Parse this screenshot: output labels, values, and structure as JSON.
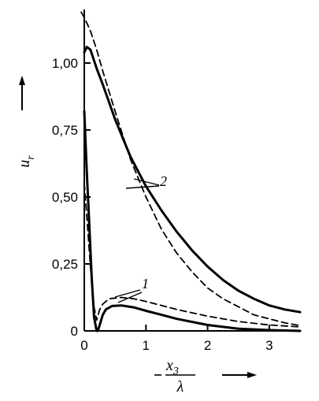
{
  "chart_data": {
    "type": "line",
    "xlim": [
      0,
      3.5
    ],
    "ylim": [
      0,
      1.2
    ],
    "grid": false,
    "legend": "none",
    "x_ticks": [
      {
        "value": 0,
        "label": "0"
      },
      {
        "value": 1,
        "label": "1"
      },
      {
        "value": 2,
        "label": "2"
      },
      {
        "value": 3,
        "label": "3"
      }
    ],
    "y_ticks": [
      {
        "value": 0,
        "label": "0"
      },
      {
        "value": 0.25,
        "label": "0,25"
      },
      {
        "value": 0.5,
        "label": "0,50"
      },
      {
        "value": 0.75,
        "label": "0,75"
      },
      {
        "value": 1.0,
        "label": "1,00"
      }
    ],
    "ylabel": {
      "main": "u",
      "sub": "r"
    },
    "xlabel": {
      "main": "x",
      "sub": "3",
      "denominator": "λ"
    },
    "annotations": [
      {
        "text": "1",
        "series": [
          "curve-1-solid",
          "curve-1-dashed"
        ]
      },
      {
        "text": "2",
        "series": [
          "curve-2-solid",
          "curve-2-dashed"
        ]
      }
    ],
    "colors": {
      "line": "#000000",
      "background": "#ffffff"
    },
    "series": [
      {
        "id": "curve-2-solid",
        "style": "solid",
        "x": [
          0.0,
          0.04,
          0.1,
          0.2,
          0.3,
          0.5,
          0.75,
          1.0,
          1.25,
          1.5,
          1.75,
          2.0,
          2.25,
          2.5,
          2.75,
          3.0,
          3.25,
          3.5
        ],
        "y": [
          1.04,
          1.06,
          1.05,
          0.98,
          0.92,
          0.79,
          0.65,
          0.54,
          0.45,
          0.37,
          0.3,
          0.24,
          0.19,
          0.15,
          0.12,
          0.095,
          0.08,
          0.07
        ]
      },
      {
        "id": "curve-2-dashed",
        "style": "dashed",
        "x": [
          -0.05,
          0.0,
          0.1,
          0.2,
          0.3,
          0.5,
          0.75,
          1.0,
          1.25,
          1.5,
          1.75,
          2.0,
          2.25,
          2.5,
          2.75,
          3.0,
          3.25,
          3.5
        ],
        "y": [
          1.19,
          1.17,
          1.12,
          1.05,
          0.97,
          0.82,
          0.64,
          0.5,
          0.38,
          0.29,
          0.22,
          0.16,
          0.12,
          0.09,
          0.06,
          0.045,
          0.03,
          0.02
        ]
      },
      {
        "id": "curve-1-solid",
        "style": "solid",
        "x": [
          0.0,
          0.04,
          0.08,
          0.12,
          0.16,
          0.2,
          0.22,
          0.26,
          0.3,
          0.35,
          0.45,
          0.6,
          0.8,
          1.0,
          1.25,
          1.5,
          2.0,
          2.5,
          3.0,
          3.5
        ],
        "y": [
          0.82,
          0.6,
          0.4,
          0.2,
          0.05,
          0.0,
          0.0,
          0.03,
          0.06,
          0.08,
          0.093,
          0.095,
          0.088,
          0.075,
          0.06,
          0.045,
          0.022,
          0.008,
          0.003,
          0.0
        ]
      },
      {
        "id": "curve-1-dashed",
        "style": "dashed",
        "x": [
          0.0,
          0.05,
          0.1,
          0.15,
          0.2,
          0.25,
          0.3,
          0.4,
          0.6,
          0.8,
          1.0,
          1.25,
          1.5,
          2.0,
          2.5,
          3.0,
          3.5
        ],
        "y": [
          0.55,
          0.4,
          0.24,
          0.1,
          0.04,
          0.08,
          0.1,
          0.12,
          0.125,
          0.12,
          0.11,
          0.095,
          0.08,
          0.055,
          0.035,
          0.022,
          0.015
        ]
      }
    ]
  }
}
